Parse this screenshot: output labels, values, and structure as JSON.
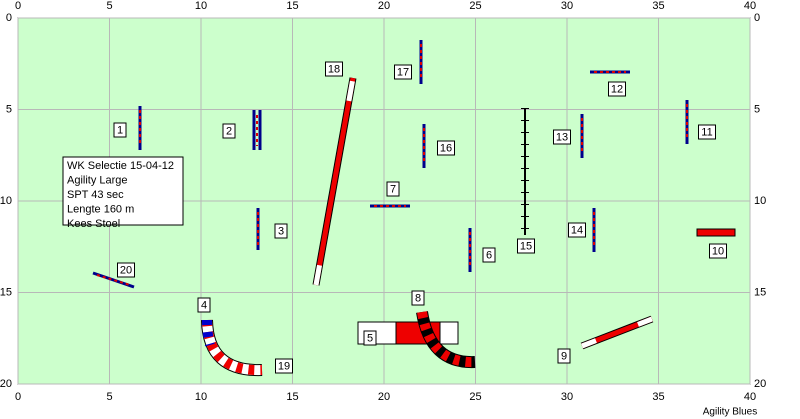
{
  "course": {
    "xticks": [
      0,
      5,
      10,
      15,
      20,
      25,
      30,
      35,
      40
    ],
    "yticks": [
      0,
      5,
      10,
      15,
      20
    ],
    "info": [
      "WK Selectie 15-04-12",
      "Agility Large",
      "SPT 43 sec",
      "Lengte 160 m",
      "Kees Stoel"
    ],
    "obstacles": [
      "1",
      "2",
      "3",
      "4",
      "5",
      "6",
      "7",
      "8",
      "9",
      "10",
      "11",
      "12",
      "13",
      "14",
      "15",
      "16",
      "17",
      "18",
      "19",
      "20"
    ],
    "footer": "Agility Blues"
  }
}
